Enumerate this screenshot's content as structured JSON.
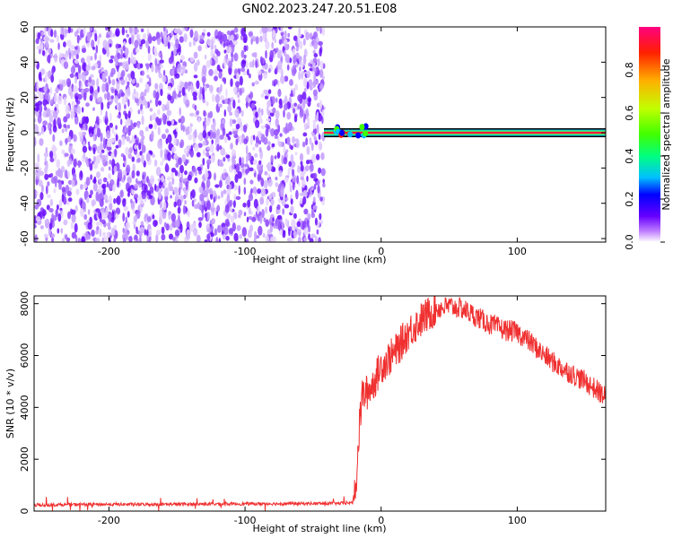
{
  "title": "GN02.2023.247.20.51.E08",
  "chart_data": [
    {
      "type": "heatmap",
      "xlabel": "Height of straight line (km)",
      "ylabel": "Frequency (Hz)",
      "xlim": [
        -255,
        165
      ],
      "ylim": [
        -62,
        60
      ],
      "xticks": [
        -200,
        -100,
        0,
        100
      ],
      "yticks": [
        -60,
        -40,
        -20,
        0,
        20,
        40,
        60
      ],
      "colorbar": {
        "label": "Normalized spectral amplitude",
        "range": [
          0,
          1
        ],
        "ticks": [
          0.0,
          0.2,
          0.4,
          0.6,
          0.8
        ],
        "colormap": [
          "#ffffff",
          "#c080ff",
          "#6600ff",
          "#0000ff",
          "#00c0ff",
          "#00ff80",
          "#40ff00",
          "#c0ff00",
          "#ffb000",
          "#ff2000",
          "#ff0080"
        ]
      },
      "regions": [
        {
          "description": "noise",
          "x_range": [
            -255,
            -42
          ],
          "freq_range": [
            -62,
            60
          ],
          "amplitude_range": [
            0.0,
            0.2
          ]
        },
        {
          "description": "carrier line",
          "x_range": [
            -42,
            165
          ],
          "freq": 0,
          "peak_amplitude": 0.95
        }
      ]
    },
    {
      "type": "line",
      "xlabel": "Height of straight line (km)",
      "ylabel": "SNR (10 * v/v)",
      "xlim": [
        -255,
        165
      ],
      "ylim": [
        0,
        8300
      ],
      "xticks": [
        -200,
        -100,
        0,
        100
      ],
      "yticks": [
        0,
        2000,
        4000,
        6000,
        8000
      ],
      "color": "#f03030",
      "series": [
        {
          "x": [
            -255,
            -220,
            -180,
            -140,
            -100,
            -60,
            -30,
            -21,
            -18,
            -16,
            -14,
            -12,
            -10,
            -5,
            0,
            10,
            20,
            30,
            40,
            50,
            60,
            70,
            80,
            90,
            100,
            110,
            120,
            130,
            140,
            150,
            160,
            165
          ],
          "y": [
            230,
            260,
            260,
            270,
            280,
            290,
            300,
            320,
            1400,
            3200,
            4500,
            4500,
            4600,
            5000,
            5600,
            6100,
            6900,
            7400,
            7800,
            7900,
            7800,
            7500,
            7200,
            7000,
            6900,
            6500,
            6000,
            5600,
            5300,
            5000,
            4600,
            4400
          ]
        }
      ]
    }
  ]
}
